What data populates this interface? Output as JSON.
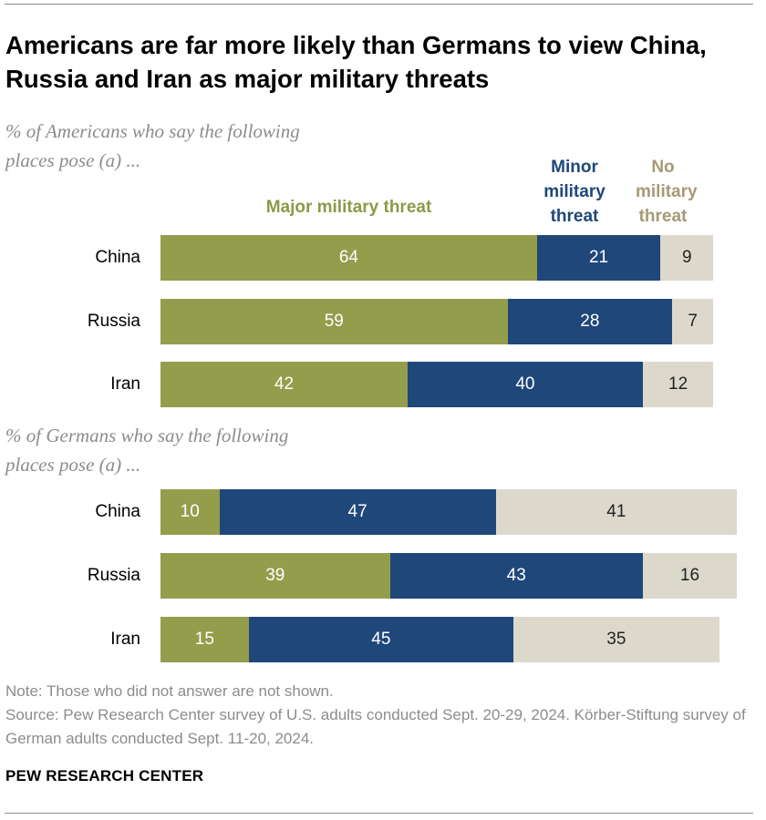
{
  "title": "Americans are far more likely than Germans to view China, Russia and Iran as major military threats",
  "brand": "PEW RESEARCH CENTER",
  "notes": {
    "note": "Note: Those who did not answer are not shown.",
    "source": "Source: Pew Research Center survey of U.S. adults conducted Sept. 20-29, 2024. Körber-Stiftung survey of German adults conducted Sept. 11-20, 2024."
  },
  "colors": {
    "major": "#949d4c",
    "minor": "#1f477a",
    "none": "#dcd9cc"
  },
  "chart_data": {
    "type": "bar",
    "orientation": "horizontal",
    "stacked": true,
    "legend": {
      "major": "Major military threat",
      "minor": "Minor military threat",
      "none": "No military threat"
    },
    "groups": [
      {
        "subtitle": "% of Americans who say the following places pose (a) ...",
        "categories": [
          "China",
          "Russia",
          "Iran"
        ],
        "series": [
          {
            "name": "Major military threat",
            "key": "major",
            "values": [
              64,
              59,
              42
            ]
          },
          {
            "name": "Minor military threat",
            "key": "minor",
            "values": [
              21,
              28,
              40
            ]
          },
          {
            "name": "No military threat",
            "key": "none",
            "values": [
              9,
              7,
              12
            ]
          }
        ]
      },
      {
        "subtitle": "% of Germans who say the following places pose (a) ...",
        "categories": [
          "China",
          "Russia",
          "Iran"
        ],
        "series": [
          {
            "name": "Major military threat",
            "key": "major",
            "values": [
              10,
              39,
              15
            ]
          },
          {
            "name": "Minor military threat",
            "key": "minor",
            "values": [
              47,
              43,
              45
            ]
          },
          {
            "name": "No military threat",
            "key": "none",
            "values": [
              41,
              16,
              35
            ]
          }
        ]
      }
    ]
  }
}
